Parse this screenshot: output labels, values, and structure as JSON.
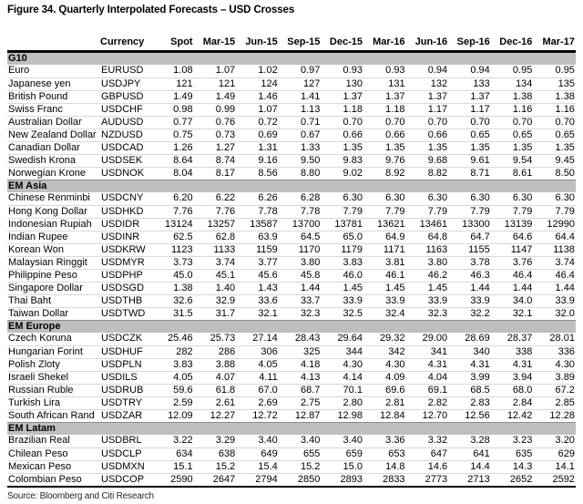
{
  "title": "Figure 34. Quarterly Interpolated Forecasts – USD Crosses",
  "source": "Source: Bloomberg and Citi Research",
  "colors": {
    "section_band": "#bfbfbf",
    "header_rule": "#000000",
    "row_divider": "#d9d9d9"
  },
  "table": {
    "headers": [
      "Currency",
      "Spot",
      "Mar-15",
      "Jun-15",
      "Sep-15",
      "Dec-15",
      "Mar-16",
      "Jun-16",
      "Sep-16",
      "Dec-16",
      "Mar-17"
    ],
    "sections": [
      {
        "label": "G10",
        "rows": [
          {
            "name": "Euro",
            "code": "EURUSD",
            "values": [
              "1.08",
              "1.07",
              "1.02",
              "0.97",
              "0.93",
              "0.93",
              "0.94",
              "0.94",
              "0.95",
              "0.95"
            ]
          },
          {
            "name": "Japanese yen",
            "code": "USDJPY",
            "values": [
              "121",
              "121",
              "124",
              "127",
              "130",
              "131",
              "132",
              "133",
              "134",
              "135"
            ]
          },
          {
            "name": "British Pound",
            "code": "GBPUSD",
            "values": [
              "1.49",
              "1.49",
              "1.46",
              "1.41",
              "1.37",
              "1.37",
              "1.37",
              "1.37",
              "1.38",
              "1.38"
            ]
          },
          {
            "name": "Swiss Franc",
            "code": "USDCHF",
            "values": [
              "0.98",
              "0.99",
              "1.07",
              "1.13",
              "1.18",
              "1.18",
              "1.17",
              "1.17",
              "1.16",
              "1.16"
            ]
          },
          {
            "name": "Australian Dollar",
            "code": "AUDUSD",
            "values": [
              "0.77",
              "0.76",
              "0.72",
              "0.71",
              "0.70",
              "0.70",
              "0.70",
              "0.70",
              "0.70",
              "0.70"
            ]
          },
          {
            "name": "New Zealand Dollar",
            "code": "NZDUSD",
            "values": [
              "0.75",
              "0.73",
              "0.69",
              "0.67",
              "0.66",
              "0.66",
              "0.66",
              "0.65",
              "0.65",
              "0.65"
            ]
          },
          {
            "name": "Canadian Dollar",
            "code": "USDCAD",
            "values": [
              "1.26",
              "1.27",
              "1.31",
              "1.33",
              "1.35",
              "1.35",
              "1.35",
              "1.35",
              "1.35",
              "1.35"
            ]
          },
          {
            "name": "Swedish Krona",
            "code": "USDSEK",
            "values": [
              "8.64",
              "8.74",
              "9.16",
              "9.50",
              "9.83",
              "9.76",
              "9.68",
              "9.61",
              "9.54",
              "9.45"
            ]
          },
          {
            "name": "Norwegian Krone",
            "code": "USDNOK",
            "values": [
              "8.04",
              "8.17",
              "8.56",
              "8.80",
              "9.02",
              "8.92",
              "8.82",
              "8.71",
              "8.61",
              "8.50"
            ]
          }
        ]
      },
      {
        "label": "EM Asia",
        "rows": [
          {
            "name": "Chinese Renminbi",
            "code": "USDCNY",
            "values": [
              "6.20",
              "6.22",
              "6.26",
              "6.28",
              "6.30",
              "6.30",
              "6.30",
              "6.30",
              "6.30",
              "6.30"
            ]
          },
          {
            "name": "Hong Kong Dollar",
            "code": "USDHKD",
            "values": [
              "7.76",
              "7.76",
              "7.78",
              "7.78",
              "7.79",
              "7.79",
              "7.79",
              "7.79",
              "7.79",
              "7.79"
            ]
          },
          {
            "name": "Indonesian Rupiah",
            "code": "USDIDR",
            "values": [
              "13124",
              "13257",
              "13587",
              "13700",
              "13781",
              "13621",
              "13461",
              "13300",
              "13139",
              "12990"
            ]
          },
          {
            "name": "Indian Rupee",
            "code": "USDINR",
            "values": [
              "62.5",
              "62.8",
              "63.9",
              "64.5",
              "65.0",
              "64.9",
              "64.8",
              "64.7",
              "64.6",
              "64.4"
            ]
          },
          {
            "name": "Korean Won",
            "code": "USDKRW",
            "values": [
              "1123",
              "1133",
              "1159",
              "1170",
              "1179",
              "1171",
              "1163",
              "1155",
              "1147",
              "1138"
            ]
          },
          {
            "name": "Malaysian Ringgit",
            "code": "USDMYR",
            "values": [
              "3.73",
              "3.74",
              "3.77",
              "3.80",
              "3.83",
              "3.81",
              "3.80",
              "3.78",
              "3.76",
              "3.74"
            ]
          },
          {
            "name": "Philippine Peso",
            "code": "USDPHP",
            "values": [
              "45.0",
              "45.1",
              "45.6",
              "45.8",
              "46.0",
              "46.1",
              "46.2",
              "46.3",
              "46.4",
              "46.4"
            ]
          },
          {
            "name": "Singapore Dollar",
            "code": "USDSGD",
            "values": [
              "1.38",
              "1.40",
              "1.43",
              "1.44",
              "1.45",
              "1.45",
              "1.45",
              "1.44",
              "1.44",
              "1.44"
            ]
          },
          {
            "name": "Thai Baht",
            "code": "USDTHB",
            "values": [
              "32.6",
              "32.9",
              "33.6",
              "33.7",
              "33.9",
              "33.9",
              "33.9",
              "33.9",
              "34.0",
              "33.9"
            ]
          },
          {
            "name": "Taiwan Dollar",
            "code": "USDTWD",
            "values": [
              "31.5",
              "31.7",
              "32.1",
              "32.3",
              "32.5",
              "32.4",
              "32.3",
              "32.2",
              "32.1",
              "32.0"
            ]
          }
        ]
      },
      {
        "label": "EM Europe",
        "rows": [
          {
            "name": "Czech Koruna",
            "code": "USDCZK",
            "values": [
              "25.46",
              "25.73",
              "27.14",
              "28.43",
              "29.64",
              "29.32",
              "29.00",
              "28.69",
              "28.37",
              "28.01"
            ]
          },
          {
            "name": "Hungarian Forint",
            "code": "USDHUF",
            "values": [
              "282",
              "286",
              "306",
              "325",
              "344",
              "342",
              "341",
              "340",
              "338",
              "336"
            ]
          },
          {
            "name": "Polish Zloty",
            "code": "USDPLN",
            "values": [
              "3.83",
              "3.88",
              "4.05",
              "4.18",
              "4.30",
              "4.30",
              "4.31",
              "4.31",
              "4.31",
              "4.30"
            ]
          },
          {
            "name": "Israeli Shekel",
            "code": "USDILS",
            "values": [
              "4.05",
              "4.07",
              "4.11",
              "4.13",
              "4.14",
              "4.09",
              "4.04",
              "3.99",
              "3.94",
              "3.89"
            ]
          },
          {
            "name": "Russian Ruble",
            "code": "USDRUB",
            "values": [
              "59.6",
              "61.8",
              "67.0",
              "68.7",
              "70.1",
              "69.6",
              "69.1",
              "68.5",
              "68.0",
              "67.2"
            ]
          },
          {
            "name": "Turkish Lira",
            "code": "USDTRY",
            "values": [
              "2.59",
              "2.61",
              "2.69",
              "2.75",
              "2.80",
              "2.81",
              "2.82",
              "2.83",
              "2.84",
              "2.85"
            ]
          },
          {
            "name": "South African Rand",
            "code": "USDZAR",
            "values": [
              "12.09",
              "12.27",
              "12.72",
              "12.87",
              "12.98",
              "12.84",
              "12.70",
              "12.56",
              "12.42",
              "12.28"
            ]
          }
        ]
      },
      {
        "label": "EM Latam",
        "rows": [
          {
            "name": "Brazilian Real",
            "code": "USDBRL",
            "values": [
              "3.22",
              "3.29",
              "3.40",
              "3.40",
              "3.40",
              "3.36",
              "3.32",
              "3.28",
              "3.23",
              "3.20"
            ]
          },
          {
            "name": "Chilean Peso",
            "code": "USDCLP",
            "values": [
              "634",
              "638",
              "649",
              "655",
              "659",
              "653",
              "647",
              "641",
              "635",
              "629"
            ]
          },
          {
            "name": "Mexican Peso",
            "code": "USDMXN",
            "values": [
              "15.1",
              "15.2",
              "15.4",
              "15.2",
              "15.0",
              "14.8",
              "14.6",
              "14.4",
              "14.3",
              "14.1"
            ]
          },
          {
            "name": "Colombian Peso",
            "code": "USDCOP",
            "values": [
              "2590",
              "2647",
              "2794",
              "2850",
              "2893",
              "2833",
              "2773",
              "2713",
              "2652",
              "2592"
            ]
          }
        ]
      }
    ]
  }
}
